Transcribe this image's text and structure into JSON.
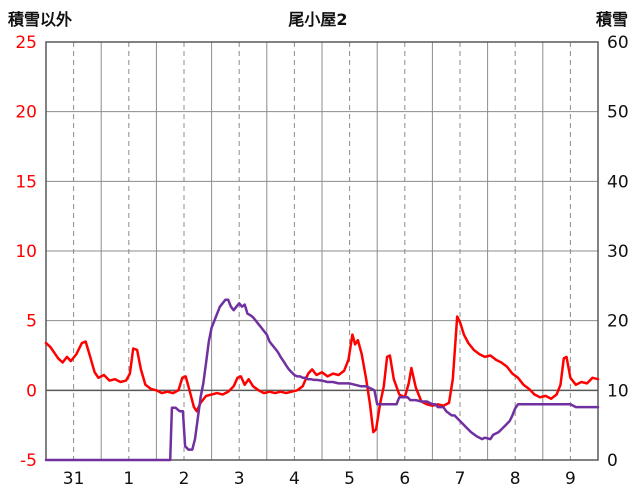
{
  "header": {
    "left_axis_title": "積雪以外",
    "title": "尾小屋2",
    "right_axis_title": "積雪"
  },
  "chart_data": {
    "type": "line",
    "title": "尾小屋2",
    "x_axis": {
      "labels": [
        "31",
        "1",
        "2",
        "3",
        "4",
        "5",
        "6",
        "7",
        "8",
        "9"
      ],
      "range": [
        0,
        10
      ],
      "label_color": "#111111",
      "gridline_style": "solid lines at day boundaries, dashed lines at day centers"
    },
    "left_axis": {
      "title": "積雪以外",
      "ticks": [
        25,
        20,
        15,
        10,
        5,
        0,
        -5
      ],
      "range": [
        -5,
        25
      ],
      "tick_color": "#ff0000"
    },
    "right_axis": {
      "title": "積雪",
      "ticks": [
        60,
        50,
        40,
        30,
        20,
        10,
        0
      ],
      "range": [
        0,
        60
      ],
      "tick_color": "#111111"
    },
    "colors": {
      "grid": "#8c8c8c",
      "border": "#595959",
      "zero_line": "#595959",
      "background": "#ffffff"
    },
    "legend": "none",
    "series": [
      {
        "name": "積雪以外",
        "axis": "left",
        "color": "#ff0000",
        "points": [
          [
            0,
            3.4
          ],
          [
            0.08,
            3.1
          ],
          [
            0.15,
            2.7
          ],
          [
            0.22,
            2.3
          ],
          [
            0.3,
            2
          ],
          [
            0.38,
            2.4
          ],
          [
            0.45,
            2.1
          ],
          [
            0.55,
            2.6
          ],
          [
            0.65,
            3.4
          ],
          [
            0.72,
            3.5
          ],
          [
            0.8,
            2.4
          ],
          [
            0.88,
            1.3
          ],
          [
            0.95,
            0.9
          ],
          [
            1.05,
            1.1
          ],
          [
            1.15,
            0.7
          ],
          [
            1.25,
            0.8
          ],
          [
            1.35,
            0.6
          ],
          [
            1.45,
            0.7
          ],
          [
            1.52,
            1.2
          ],
          [
            1.58,
            3
          ],
          [
            1.65,
            2.9
          ],
          [
            1.72,
            1.5
          ],
          [
            1.8,
            0.4
          ],
          [
            1.9,
            0.1
          ],
          [
            2,
            0
          ],
          [
            2.1,
            -0.2
          ],
          [
            2.2,
            -0.1
          ],
          [
            2.3,
            -0.2
          ],
          [
            2.4,
            0
          ],
          [
            2.47,
            0.9
          ],
          [
            2.53,
            1
          ],
          [
            2.6,
            0
          ],
          [
            2.68,
            -1.2
          ],
          [
            2.73,
            -1.5
          ],
          [
            2.8,
            -0.9
          ],
          [
            2.9,
            -0.4
          ],
          [
            3,
            -0.3
          ],
          [
            3.1,
            -0.2
          ],
          [
            3.2,
            -0.3
          ],
          [
            3.3,
            -0.1
          ],
          [
            3.4,
            0.3
          ],
          [
            3.47,
            0.9
          ],
          [
            3.53,
            1
          ],
          [
            3.6,
            0.4
          ],
          [
            3.67,
            0.8
          ],
          [
            3.75,
            0.3
          ],
          [
            3.85,
            0
          ],
          [
            3.95,
            -0.2
          ],
          [
            4.05,
            -0.1
          ],
          [
            4.15,
            -0.2
          ],
          [
            4.25,
            -0.1
          ],
          [
            4.35,
            -0.2
          ],
          [
            4.45,
            -0.1
          ],
          [
            4.55,
            0
          ],
          [
            4.65,
            0.3
          ],
          [
            4.75,
            1.2
          ],
          [
            4.82,
            1.5
          ],
          [
            4.9,
            1.1
          ],
          [
            5,
            1.3
          ],
          [
            5.1,
            1
          ],
          [
            5.2,
            1.2
          ],
          [
            5.3,
            1.1
          ],
          [
            5.4,
            1.4
          ],
          [
            5.48,
            2.2
          ],
          [
            5.55,
            4
          ],
          [
            5.6,
            3.3
          ],
          [
            5.65,
            3.6
          ],
          [
            5.72,
            2.6
          ],
          [
            5.8,
            0.8
          ],
          [
            5.87,
            -1
          ],
          [
            5.93,
            -3
          ],
          [
            5.98,
            -2.8
          ],
          [
            6.05,
            -1
          ],
          [
            6.12,
            0.3
          ],
          [
            6.18,
            2.4
          ],
          [
            6.23,
            2.5
          ],
          [
            6.3,
            0.8
          ],
          [
            6.4,
            -0.3
          ],
          [
            6.5,
            -0.5
          ],
          [
            6.57,
            0.5
          ],
          [
            6.62,
            1.6
          ],
          [
            6.7,
            0.2
          ],
          [
            6.8,
            -0.8
          ],
          [
            6.9,
            -1
          ],
          [
            7,
            -1.1
          ],
          [
            7.1,
            -1
          ],
          [
            7.2,
            -1.1
          ],
          [
            7.3,
            -0.9
          ],
          [
            7.37,
            0.8
          ],
          [
            7.45,
            5.3
          ],
          [
            7.5,
            4.9
          ],
          [
            7.57,
            4
          ],
          [
            7.65,
            3.4
          ],
          [
            7.75,
            2.9
          ],
          [
            7.85,
            2.6
          ],
          [
            7.95,
            2.4
          ],
          [
            8.05,
            2.5
          ],
          [
            8.15,
            2.2
          ],
          [
            8.25,
            2
          ],
          [
            8.35,
            1.7
          ],
          [
            8.45,
            1.2
          ],
          [
            8.55,
            0.9
          ],
          [
            8.65,
            0.4
          ],
          [
            8.75,
            0.1
          ],
          [
            8.85,
            -0.3
          ],
          [
            8.95,
            -0.5
          ],
          [
            9.05,
            -0.4
          ],
          [
            9.15,
            -0.6
          ],
          [
            9.25,
            -0.3
          ],
          [
            9.32,
            0.4
          ],
          [
            9.38,
            2.3
          ],
          [
            9.43,
            2.4
          ],
          [
            9.5,
            0.9
          ],
          [
            9.6,
            0.4
          ],
          [
            9.7,
            0.6
          ],
          [
            9.8,
            0.5
          ],
          [
            9.9,
            0.9
          ],
          [
            10,
            0.8
          ]
        ]
      },
      {
        "name": "積雪",
        "axis": "right",
        "color": "#7030a0",
        "points": [
          [
            0,
            0
          ],
          [
            1,
            0
          ],
          [
            1.5,
            0
          ],
          [
            2,
            0
          ],
          [
            2.25,
            0
          ],
          [
            2.28,
            7.5
          ],
          [
            2.35,
            7.5
          ],
          [
            2.42,
            7
          ],
          [
            2.48,
            7
          ],
          [
            2.52,
            2
          ],
          [
            2.58,
            1.5
          ],
          [
            2.65,
            1.5
          ],
          [
            2.7,
            3
          ],
          [
            2.75,
            6
          ],
          [
            2.8,
            9
          ],
          [
            2.85,
            11
          ],
          [
            2.9,
            14
          ],
          [
            2.95,
            17
          ],
          [
            3,
            19
          ],
          [
            3.05,
            20
          ],
          [
            3.1,
            21
          ],
          [
            3.15,
            22
          ],
          [
            3.2,
            22.5
          ],
          [
            3.25,
            23
          ],
          [
            3.3,
            23
          ],
          [
            3.35,
            22
          ],
          [
            3.4,
            21.5
          ],
          [
            3.45,
            22
          ],
          [
            3.5,
            22.5
          ],
          [
            3.55,
            22
          ],
          [
            3.6,
            22.3
          ],
          [
            3.65,
            21
          ],
          [
            3.7,
            20.8
          ],
          [
            3.75,
            20.5
          ],
          [
            3.8,
            20
          ],
          [
            3.85,
            19.5
          ],
          [
            3.9,
            19
          ],
          [
            3.95,
            18.5
          ],
          [
            4,
            18
          ],
          [
            4.05,
            17
          ],
          [
            4.1,
            16.5
          ],
          [
            4.15,
            16
          ],
          [
            4.2,
            15.5
          ],
          [
            4.25,
            14.8
          ],
          [
            4.3,
            14.2
          ],
          [
            4.35,
            13.6
          ],
          [
            4.4,
            13
          ],
          [
            4.45,
            12.6
          ],
          [
            4.5,
            12.2
          ],
          [
            4.55,
            12
          ],
          [
            4.6,
            12
          ],
          [
            4.65,
            11.8
          ],
          [
            4.7,
            11.8
          ],
          [
            4.75,
            11.6
          ],
          [
            4.8,
            11.6
          ],
          [
            4.85,
            11.5
          ],
          [
            4.9,
            11.5
          ],
          [
            5,
            11.4
          ],
          [
            5.1,
            11.2
          ],
          [
            5.2,
            11.2
          ],
          [
            5.3,
            11
          ],
          [
            5.4,
            11
          ],
          [
            5.5,
            11
          ],
          [
            5.6,
            10.8
          ],
          [
            5.7,
            10.6
          ],
          [
            5.8,
            10.6
          ],
          [
            5.9,
            10.2
          ],
          [
            5.95,
            10
          ],
          [
            6,
            8
          ],
          [
            6.1,
            8
          ],
          [
            6.2,
            8
          ],
          [
            6.3,
            8
          ],
          [
            6.35,
            8
          ],
          [
            6.4,
            9
          ],
          [
            6.5,
            9
          ],
          [
            6.55,
            9
          ],
          [
            6.6,
            8.6
          ],
          [
            6.7,
            8.6
          ],
          [
            6.8,
            8.4
          ],
          [
            6.9,
            8.4
          ],
          [
            7,
            8
          ],
          [
            7.05,
            8
          ],
          [
            7.1,
            7.6
          ],
          [
            7.2,
            7.6
          ],
          [
            7.25,
            7
          ],
          [
            7.35,
            6.4
          ],
          [
            7.4,
            6.4
          ],
          [
            7.5,
            5.6
          ],
          [
            7.6,
            4.8
          ],
          [
            7.7,
            4
          ],
          [
            7.8,
            3.4
          ],
          [
            7.9,
            3
          ],
          [
            7.95,
            3.2
          ],
          [
            8.05,
            3
          ],
          [
            8.1,
            3.6
          ],
          [
            8.2,
            4
          ],
          [
            8.3,
            4.8
          ],
          [
            8.4,
            5.6
          ],
          [
            8.45,
            6.4
          ],
          [
            8.5,
            7.4
          ],
          [
            8.55,
            8
          ],
          [
            8.7,
            8
          ],
          [
            8.9,
            8
          ],
          [
            9.1,
            8
          ],
          [
            9.3,
            8
          ],
          [
            9.5,
            8
          ],
          [
            9.6,
            7.6
          ],
          [
            9.8,
            7.6
          ],
          [
            10,
            7.6
          ]
        ]
      }
    ]
  }
}
